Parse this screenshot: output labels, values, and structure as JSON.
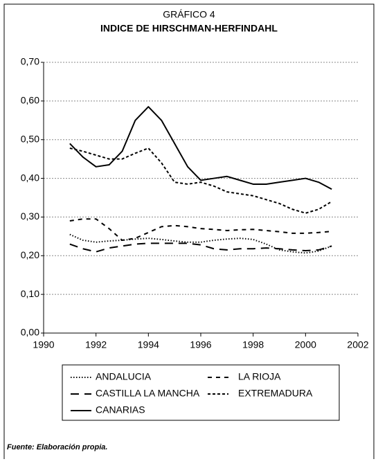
{
  "chart_data": {
    "type": "line",
    "supertitle": "GRÁFICO 4",
    "title": "INDICE DE HIRSCHMAN-HERFINDAHL",
    "source": "Fuente: Elaboración propia.",
    "x": [
      1991,
      1991.5,
      1992,
      1992.5,
      1993,
      1993.5,
      1994,
      1994.5,
      1995,
      1995.5,
      1996,
      1996.5,
      1997,
      1997.5,
      1998,
      1998.5,
      1999,
      1999.5,
      2000,
      2000.5,
      2001
    ],
    "series": [
      {
        "name": "ANDALUCIA",
        "color": "#000000",
        "dash": "dotted",
        "values": [
          0.255,
          0.24,
          0.235,
          0.238,
          0.24,
          0.243,
          0.245,
          0.242,
          0.238,
          0.235,
          0.235,
          0.24,
          0.243,
          0.245,
          0.242,
          0.23,
          0.215,
          0.21,
          0.207,
          0.212,
          0.225
        ]
      },
      {
        "name": "LA RIOJA",
        "color": "#000000",
        "dash": "dashed",
        "values": [
          0.29,
          0.295,
          0.295,
          0.27,
          0.24,
          0.245,
          0.26,
          0.275,
          0.278,
          0.275,
          0.27,
          0.268,
          0.265,
          0.267,
          0.268,
          0.265,
          0.262,
          0.258,
          0.258,
          0.26,
          0.263
        ]
      },
      {
        "name": "CASTILLA LA MANCHA",
        "color": "#000000",
        "dash": "long-dashed",
        "values": [
          0.23,
          0.218,
          0.21,
          0.22,
          0.225,
          0.23,
          0.232,
          0.232,
          0.232,
          0.232,
          0.228,
          0.218,
          0.215,
          0.218,
          0.218,
          0.22,
          0.218,
          0.215,
          0.213,
          0.215,
          0.225
        ]
      },
      {
        "name": "EXTREMADURA",
        "color": "#000000",
        "dash": "short-dashed",
        "values": [
          0.478,
          0.47,
          0.46,
          0.45,
          0.45,
          0.465,
          0.478,
          0.44,
          0.39,
          0.385,
          0.39,
          0.38,
          0.365,
          0.36,
          0.355,
          0.345,
          0.335,
          0.32,
          0.31,
          0.32,
          0.34
        ]
      },
      {
        "name": "CANARIAS",
        "color": "#000000",
        "dash": "solid",
        "values": [
          0.49,
          0.455,
          0.43,
          0.435,
          0.47,
          0.55,
          0.585,
          0.55,
          0.49,
          0.43,
          0.395,
          0.4,
          0.405,
          0.395,
          0.385,
          0.385,
          0.39,
          0.395,
          0.4,
          0.39,
          0.372
        ]
      }
    ],
    "xlim": [
      1990,
      2002
    ],
    "xticks": [
      1990,
      1992,
      1994,
      1996,
      1998,
      2000,
      2002
    ],
    "ylim": [
      0,
      0.7
    ],
    "yticks": [
      {
        "value": 0,
        "label": "0,00"
      },
      {
        "value": 0.1,
        "label": "0,10"
      },
      {
        "value": 0.2,
        "label": "0,20"
      },
      {
        "value": 0.3,
        "label": "0,30"
      },
      {
        "value": 0.4,
        "label": "0,40"
      },
      {
        "value": 0.5,
        "label": "0,50"
      },
      {
        "value": 0.6,
        "label": "0,60"
      },
      {
        "value": 0.7,
        "label": "0,70"
      }
    ],
    "grid": true,
    "legend": "bottom"
  }
}
